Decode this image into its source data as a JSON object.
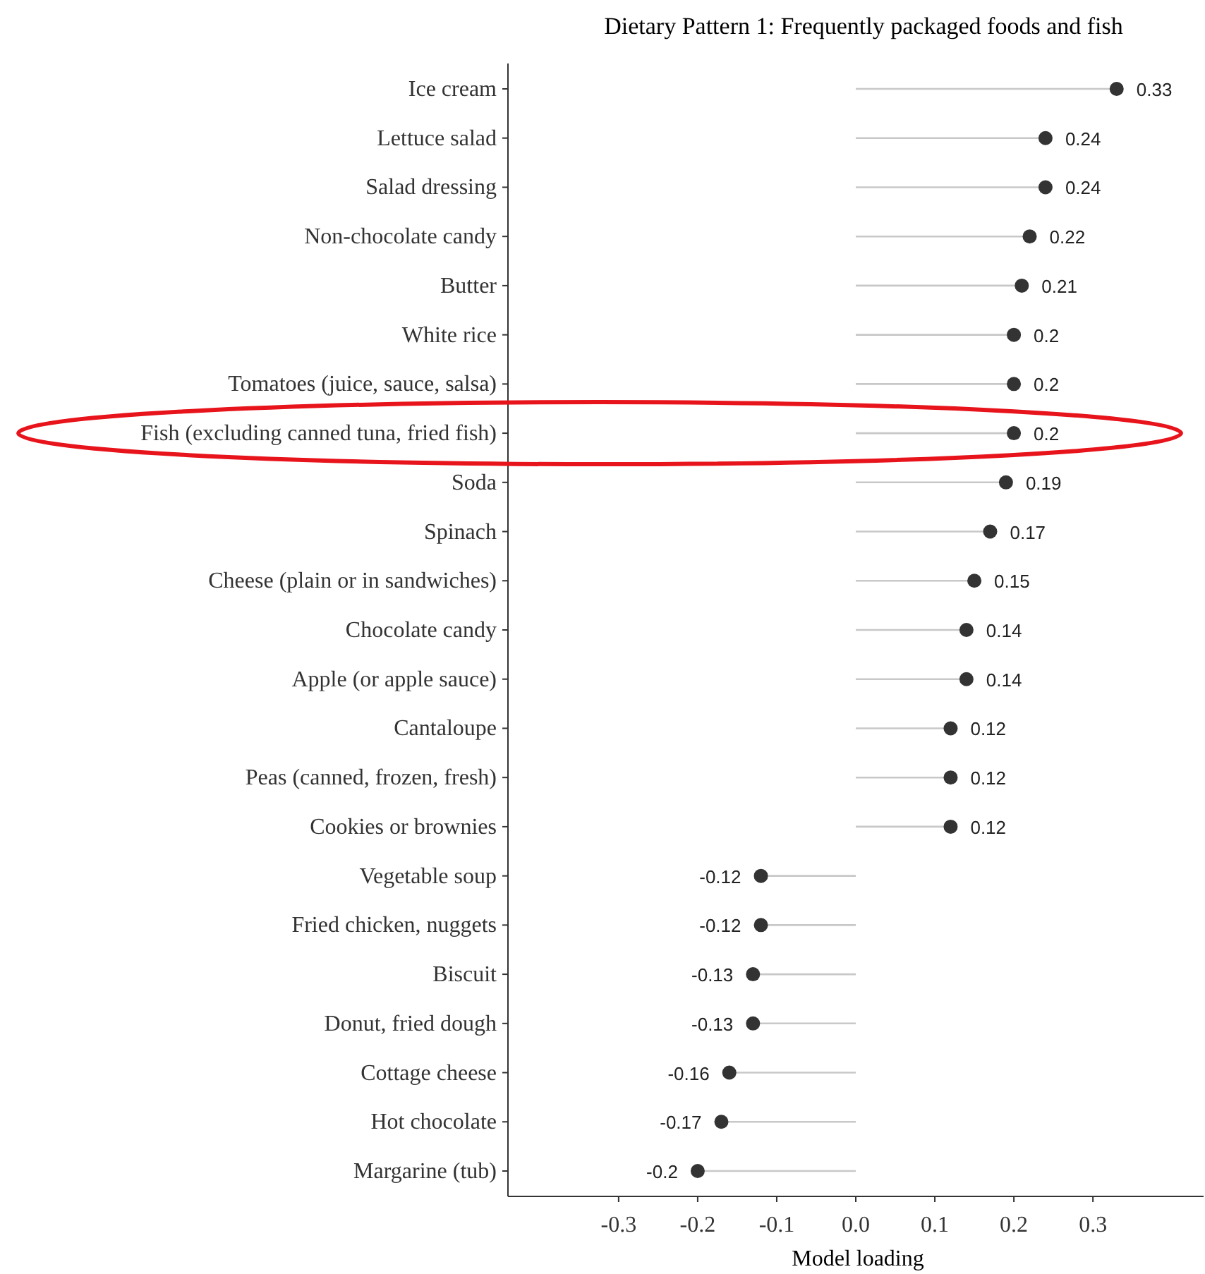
{
  "chart_data": {
    "type": "lollipop",
    "orientation": "horizontal",
    "title": "Dietary Pattern 1: Frequently packaged foods and fish",
    "xlabel": "Model loading",
    "categories": [
      "Ice cream",
      "Lettuce salad",
      "Salad dressing",
      "Non-chocolate candy",
      "Butter",
      "White rice",
      "Tomatoes (juice, sauce, salsa)",
      "Fish (excluding canned tuna, fried fish)",
      "Soda",
      "Spinach",
      "Cheese (plain or in sandwiches)",
      "Chocolate candy",
      "Apple (or apple sauce)",
      "Cantaloupe",
      "Peas (canned, frozen, fresh)",
      "Cookies or brownies",
      "Vegetable soup",
      "Fried chicken, nuggets",
      "Biscuit",
      "Donut, fried dough",
      "Cottage cheese",
      "Hot chocolate",
      "Margarine (tub)"
    ],
    "series": [
      {
        "color": "#333333",
        "values": [
          0.33,
          0.24,
          0.24,
          0.22,
          0.21,
          0.2,
          0.2,
          0.2,
          0.19,
          0.17,
          0.15,
          0.14,
          0.14,
          0.12,
          0.12,
          0.12,
          -0.12,
          -0.12,
          -0.13,
          -0.13,
          -0.16,
          -0.17,
          -0.2
        ]
      }
    ],
    "xlim": [
      -0.44,
      0.44
    ],
    "xticks": [
      {
        "value": -0.3,
        "label": "-0.3"
      },
      {
        "value": -0.2,
        "label": "-0.2"
      },
      {
        "value": -0.1,
        "label": "-0.1"
      },
      {
        "value": 0,
        "label": "0.0"
      },
      {
        "value": 0.1,
        "label": "0.1"
      },
      {
        "value": 0.2,
        "label": "0.2"
      },
      {
        "value": 0.3,
        "label": "0.3"
      }
    ],
    "data_labels": true,
    "marker": "circle",
    "grid": false
  }
}
